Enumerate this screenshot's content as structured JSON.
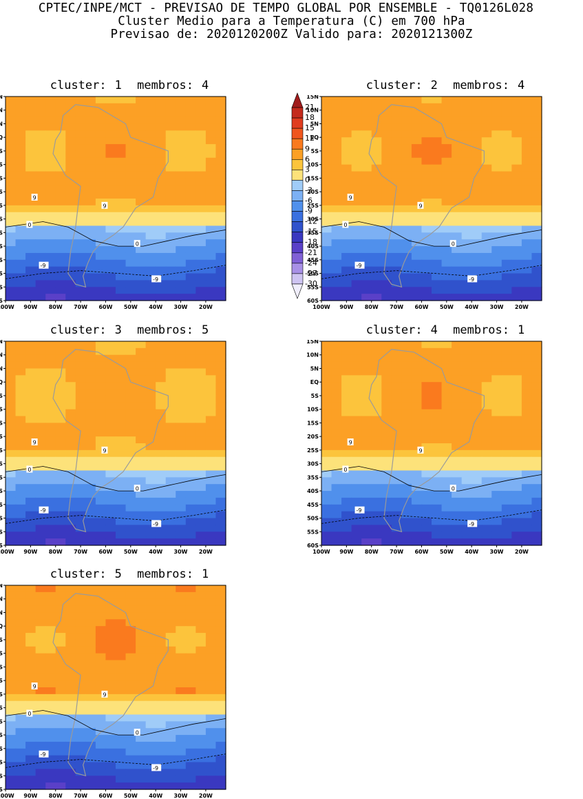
{
  "header": {
    "line1": "CPTEC/INPE/MCT - PREVISAO DE TEMPO GLOBAL POR ENSEMBLE - TQ0126L028",
    "line2": "Cluster Medio para a Temperatura (C) em 700 hPa",
    "line3": "Previsao de: 2020120200Z   Valido para: 2020121300Z"
  },
  "axes": {
    "lat_labels": [
      "15N",
      "10N",
      "5N",
      "EQ",
      "5S",
      "10S",
      "15S",
      "20S",
      "25S",
      "30S",
      "35S",
      "40S",
      "45S",
      "50S",
      "55S",
      "60S"
    ],
    "lon_labels": [
      "100W",
      "90W",
      "80W",
      "70W",
      "60W",
      "50W",
      "40W",
      "30W",
      "20W"
    ]
  },
  "colorbar": {
    "levels": [
      "21",
      "18",
      "15",
      "12",
      "9",
      "6",
      "3",
      "0",
      "-3",
      "-6",
      "-9",
      "-12",
      "-15",
      "-18",
      "-21",
      "-24",
      "-27",
      "-30"
    ],
    "colors": [
      "#a01c1c",
      "#c42a1c",
      "#e03c1e",
      "#f0561e",
      "#fa7a1e",
      "#fca025",
      "#fcc43c",
      "#fde27a",
      "#a0ccf8",
      "#7cb0f4",
      "#5090ec",
      "#3a70e0",
      "#3052cc",
      "#3a38c0",
      "#5a40c8",
      "#8060d6",
      "#a890e6",
      "#cec4f2",
      "#f0eefc"
    ]
  },
  "panels": [
    {
      "id": 1,
      "cluster_label": "cluster:",
      "cluster_value": "1",
      "members_label": "membros:",
      "members_value": "4"
    },
    {
      "id": 2,
      "cluster_label": "cluster:",
      "cluster_value": "2",
      "members_label": "membros:",
      "members_value": "4"
    },
    {
      "id": 3,
      "cluster_label": "cluster:",
      "cluster_value": "3",
      "members_label": "membros:",
      "members_value": "5"
    },
    {
      "id": 4,
      "cluster_label": "cluster:",
      "cluster_value": "4",
      "members_label": "membros:",
      "members_value": "1"
    },
    {
      "id": 5,
      "cluster_label": "cluster:",
      "cluster_value": "5",
      "members_label": "membros:",
      "members_value": "1"
    }
  ],
  "contour_labels": {
    "warm": "9",
    "zero": "0",
    "cold": "-9"
  }
}
